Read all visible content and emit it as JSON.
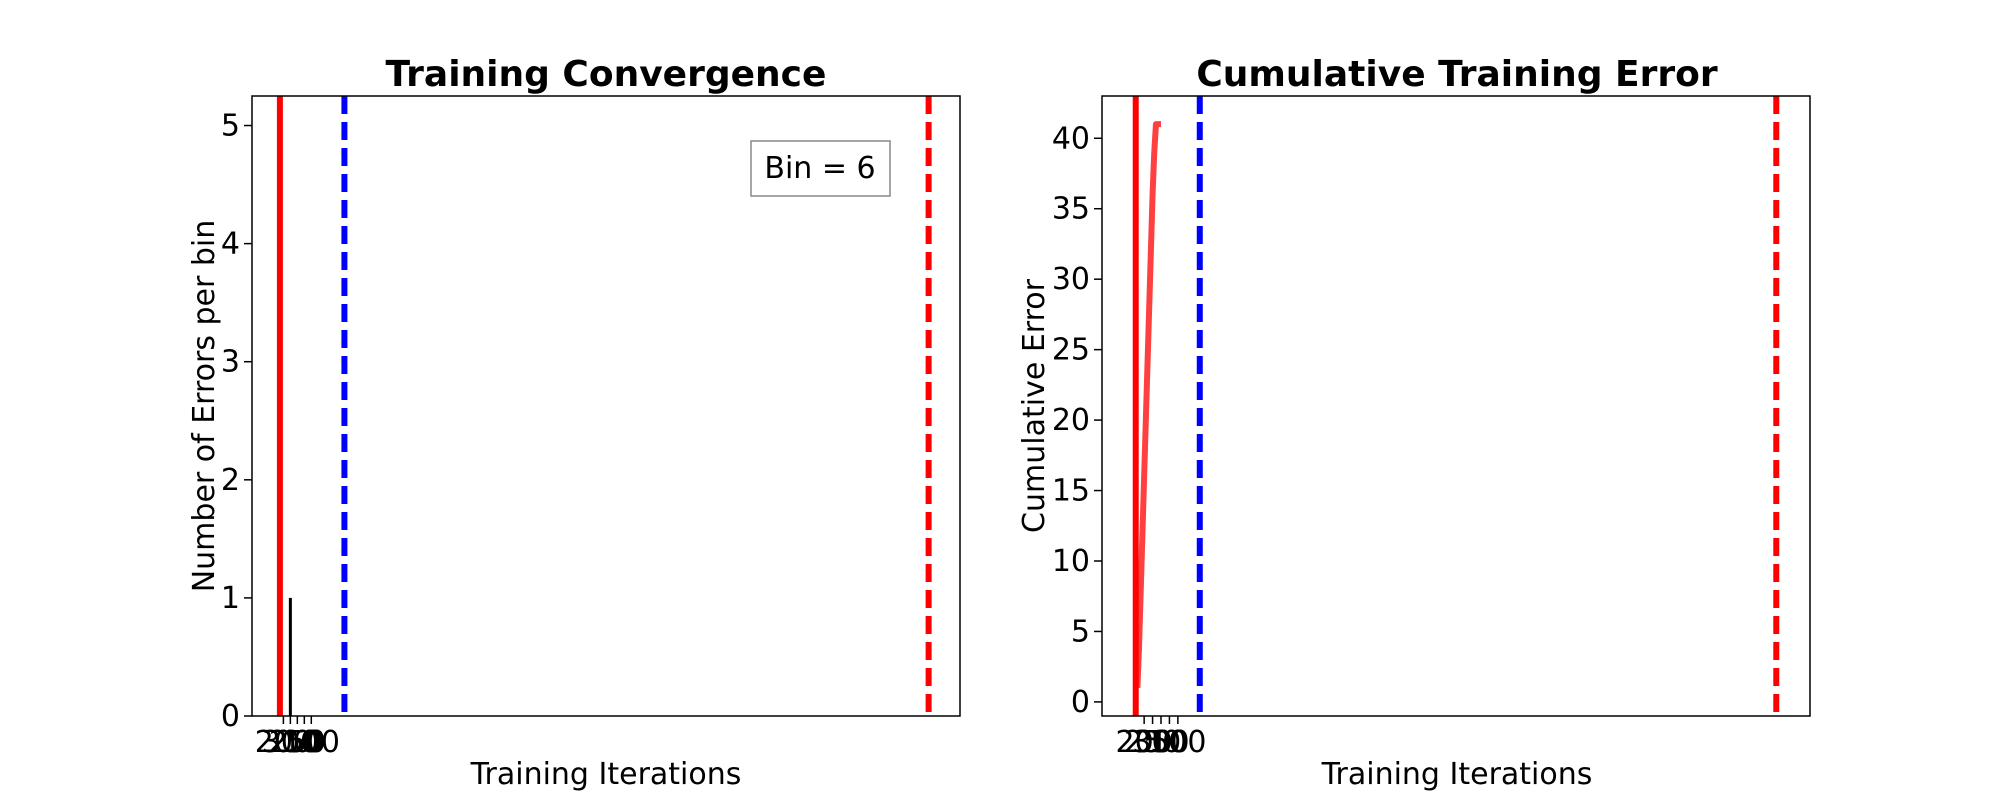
{
  "colors": {
    "background": "#ffffff",
    "vline_red": "#ff0000",
    "vline_blue": "#0000ff",
    "error_bar": "#000000",
    "cumulative_line": "#ff0000",
    "axes": "#000000"
  },
  "chart_data": [
    {
      "type": "bar",
      "title": "Training Convergence",
      "xlabel": "Training Iterations",
      "ylabel": "Number of Errors per bin",
      "ylim": [
        0,
        5.25
      ],
      "yticks": [
        0,
        1,
        2,
        3,
        4,
        5
      ],
      "xticks": [
        {
          "value": 10,
          "label": "200"
        },
        {
          "value": 14,
          "label": "300"
        },
        {
          "value": 18,
          "label": "250"
        },
        {
          "value": 22,
          "label": "50"
        },
        {
          "value": 26,
          "label": "100"
        }
      ],
      "xlim": [
        -8,
        398
      ],
      "bins": [
        {
          "x": 14,
          "value": 1
        }
      ],
      "vlines": [
        {
          "x": 8,
          "style": "solid",
          "color": "red"
        },
        {
          "x": 45,
          "style": "dashed",
          "color": "blue"
        },
        {
          "x": 380,
          "style": "dashed",
          "color": "red"
        }
      ],
      "legend": {
        "text": "Bin = 6",
        "placement": "top-right"
      },
      "grid": false
    },
    {
      "type": "line",
      "title": "Cumulative Training Error",
      "xlabel": "Training Iterations",
      "ylabel": "Cumulative Error",
      "ylim": [
        -1,
        43
      ],
      "yticks": [
        0,
        5,
        10,
        15,
        20,
        25,
        30,
        35,
        40
      ],
      "xticks": [
        {
          "value": 5,
          "label": "200"
        },
        {
          "value": 10,
          "label": "250"
        },
        {
          "value": 15,
          "label": "300"
        },
        {
          "value": 20,
          "label": "50"
        },
        {
          "value": 25,
          "label": "100"
        }
      ],
      "xlim": [
        -20,
        400
      ],
      "series": [
        {
          "x": [
            1,
            2,
            3,
            4,
            5,
            6,
            7,
            8,
            9,
            10,
            11,
            12,
            13,
            14,
            15
          ],
          "values": [
            1,
            4,
            8,
            12,
            16,
            20,
            24,
            28,
            32,
            36,
            39,
            41,
            41,
            41,
            41
          ]
        }
      ],
      "vlines": [
        {
          "x": 0,
          "style": "solid",
          "color": "red"
        },
        {
          "x": 38,
          "style": "dashed",
          "color": "blue"
        },
        {
          "x": 380,
          "style": "dashed",
          "color": "red"
        }
      ],
      "grid": false
    }
  ]
}
